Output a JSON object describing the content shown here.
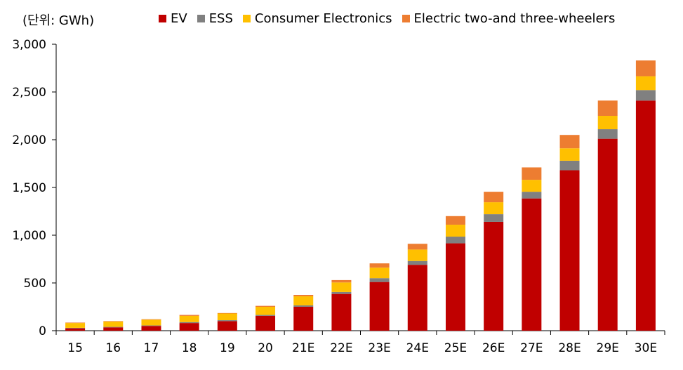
{
  "chart_data": {
    "type": "bar",
    "stacked": true,
    "unit_label": "(단위: GWh)",
    "categories": [
      "15",
      "16",
      "17",
      "18",
      "19",
      "20",
      "21E",
      "22E",
      "23E",
      "24E",
      "25E",
      "26E",
      "27E",
      "28E",
      "29E",
      "30E"
    ],
    "series": [
      {
        "name": "EV",
        "color": "#c00000",
        "values": [
          25,
          35,
          50,
          80,
          100,
          155,
          250,
          385,
          510,
          690,
          915,
          1140,
          1385,
          1680,
          2010,
          2410
        ]
      },
      {
        "name": "ESS",
        "color": "#808080",
        "values": [
          5,
          5,
          5,
          10,
          10,
          10,
          15,
          20,
          40,
          40,
          70,
          80,
          70,
          100,
          100,
          110
        ]
      },
      {
        "name": "Consumer Electronics",
        "color": "#ffc000",
        "values": [
          50,
          55,
          60,
          65,
          70,
          85,
          95,
          100,
          110,
          120,
          125,
          125,
          125,
          130,
          140,
          145
        ]
      },
      {
        "name": "Electric two-and three-wheelers",
        "color": "#ed7d31",
        "values": [
          5,
          5,
          5,
          10,
          5,
          10,
          15,
          25,
          45,
          60,
          90,
          110,
          130,
          140,
          160,
          165
        ]
      }
    ],
    "y_ticks": [
      "0",
      "500",
      "1,000",
      "1,500",
      "2,000",
      "2,500",
      "3,000"
    ],
    "ylim": [
      0,
      3000
    ],
    "legend_position": "top"
  }
}
